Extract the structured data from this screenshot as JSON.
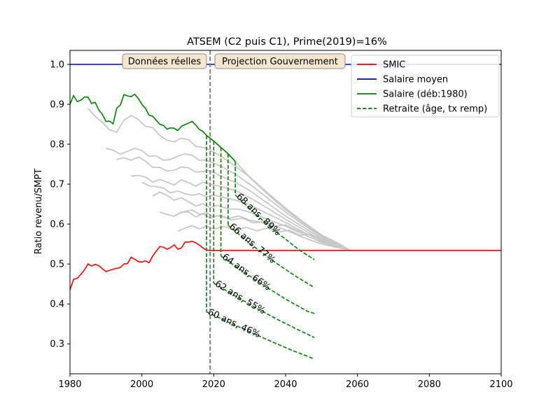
{
  "chart_data": {
    "type": "line",
    "title": "ATSEM (C2 puis C1), Prime(2019)=16%",
    "xlabel": "",
    "ylabel": "Ratio revenu/SMPT",
    "xlim": [
      1980,
      2100
    ],
    "ylim": [
      0.225,
      1.035
    ],
    "xticks": [
      1980,
      2000,
      2020,
      2040,
      2060,
      2080,
      2100
    ],
    "yticks": [
      0.3,
      0.4,
      0.5,
      0.6,
      0.7,
      0.8,
      0.9,
      1.0
    ],
    "grid": false,
    "legend_position": "top-right",
    "vline_year": 2019,
    "period_labels": [
      "Données réelles",
      "Projection Gouvernement"
    ],
    "colors": {
      "smic": "#ff0000",
      "salaire_moyen": "#0000cc",
      "salaire": "#008000",
      "retraite": "#008000",
      "background_curves": "#c8c8c8",
      "vline": "#808080",
      "label_box_fill": "#f5e6cf",
      "label_box_edge": "#8a8a8a"
    },
    "series": [
      {
        "name": "SMIC",
        "style": "solid",
        "color": "#ff0000",
        "x": [
          1980,
          1981,
          1982,
          1983,
          1984,
          1985,
          1986,
          1987,
          1988,
          1989,
          1990,
          1991,
          1992,
          1993,
          1994,
          1995,
          1996,
          1997,
          1998,
          1999,
          2000,
          2001,
          2002,
          2003,
          2004,
          2005,
          2006,
          2007,
          2008,
          2009,
          2010,
          2011,
          2012,
          2013,
          2014,
          2015,
          2016,
          2017,
          2018,
          2019,
          2100
        ],
        "y": [
          0.435,
          0.462,
          0.464,
          0.474,
          0.485,
          0.5,
          0.495,
          0.499,
          0.496,
          0.488,
          0.481,
          0.484,
          0.487,
          0.489,
          0.491,
          0.5,
          0.501,
          0.517,
          0.512,
          0.506,
          0.505,
          0.508,
          0.503,
          0.52,
          0.532,
          0.544,
          0.542,
          0.537,
          0.541,
          0.548,
          0.537,
          0.54,
          0.555,
          0.555,
          0.557,
          0.553,
          0.547,
          0.54,
          0.535,
          0.534,
          0.534
        ]
      },
      {
        "name": "Salaire moyen",
        "style": "solid",
        "color": "#0000cc",
        "x": [
          1980,
          2100
        ],
        "y": [
          1.0,
          1.0
        ]
      },
      {
        "name": "Salaire (déb:1980)",
        "style": "solid",
        "color": "#008000",
        "x": [
          1980,
          1981,
          1982,
          1983,
          1984,
          1985,
          1986,
          1987,
          1988,
          1989,
          1990,
          1991,
          1992,
          1993,
          1994,
          1995,
          1996,
          1997,
          1998,
          1999,
          2000,
          2001,
          2002,
          2003,
          2004,
          2005,
          2006,
          2007,
          2008,
          2009,
          2010,
          2011,
          2012,
          2013,
          2014,
          2015,
          2016,
          2017,
          2018
        ],
        "y": [
          0.9,
          0.922,
          0.907,
          0.91,
          0.918,
          0.918,
          0.902,
          0.905,
          0.886,
          0.875,
          0.857,
          0.858,
          0.851,
          0.89,
          0.898,
          0.924,
          0.921,
          0.919,
          0.925,
          0.915,
          0.9,
          0.89,
          0.873,
          0.87,
          0.86,
          0.85,
          0.847,
          0.838,
          0.841,
          0.84,
          0.834,
          0.845,
          0.849,
          0.853,
          0.857,
          0.848,
          0.837,
          0.832,
          0.822
        ]
      },
      {
        "name": "Retraite (âge, tx remp)",
        "style": "dashed",
        "color": "#008000",
        "x": [
          2018,
          2048
        ],
        "y": [
          0.38,
          0.262
        ]
      }
    ],
    "projection_curve": {
      "x": [
        2018,
        2020,
        2022,
        2024,
        2026,
        2028,
        2030,
        2035,
        2040,
        2045,
        2050,
        2055,
        2058
      ],
      "y": [
        0.822,
        0.808,
        0.792,
        0.776,
        0.757,
        0.737,
        0.717,
        0.675,
        0.636,
        0.602,
        0.571,
        0.549,
        0.534
      ]
    },
    "background_curves": [
      {
        "x": [
          1985,
          1987,
          1989,
          1991,
          1993,
          1995,
          1997,
          1999,
          2001,
          2003,
          2005,
          2007,
          2009,
          2011,
          2013,
          2015,
          2018,
          2022,
          2026,
          2030,
          2035,
          2040,
          2045,
          2050,
          2055,
          2058
        ],
        "y": [
          0.89,
          0.87,
          0.855,
          0.836,
          0.83,
          0.86,
          0.872,
          0.862,
          0.845,
          0.842,
          0.822,
          0.81,
          0.806,
          0.815,
          0.811,
          0.795,
          0.79,
          0.77,
          0.745,
          0.718,
          0.678,
          0.64,
          0.605,
          0.573,
          0.55,
          0.534
        ]
      },
      {
        "x": [
          1990,
          1992,
          1994,
          1996,
          1998,
          2000,
          2002,
          2004,
          2006,
          2008,
          2010,
          2012,
          2014,
          2016,
          2018,
          2022,
          2026,
          2030,
          2035,
          2040,
          2045,
          2050,
          2055,
          2058
        ],
        "y": [
          0.79,
          0.785,
          0.775,
          0.782,
          0.79,
          0.784,
          0.77,
          0.771,
          0.76,
          0.762,
          0.77,
          0.776,
          0.772,
          0.76,
          0.76,
          0.745,
          0.725,
          0.7,
          0.665,
          0.63,
          0.598,
          0.568,
          0.548,
          0.534
        ]
      },
      {
        "x": [
          1993,
          1995,
          1997,
          1999,
          2001,
          2003,
          2005,
          2007,
          2009,
          2011,
          2013,
          2015,
          2017,
          2019,
          2022,
          2026,
          2030,
          2035,
          2040,
          2045,
          2050,
          2055,
          2058
        ],
        "y": [
          0.762,
          0.766,
          0.76,
          0.768,
          0.758,
          0.742,
          0.742,
          0.733,
          0.735,
          0.743,
          0.741,
          0.73,
          0.732,
          0.734,
          0.72,
          0.705,
          0.684,
          0.652,
          0.62,
          0.592,
          0.564,
          0.546,
          0.534
        ]
      },
      {
        "x": [
          1997,
          1999,
          2001,
          2003,
          2005,
          2007,
          2009,
          2011,
          2013,
          2015,
          2017,
          2019,
          2022,
          2026,
          2030,
          2035,
          2040,
          2045,
          2050,
          2055,
          2058
        ],
        "y": [
          0.72,
          0.722,
          0.718,
          0.705,
          0.712,
          0.705,
          0.698,
          0.711,
          0.704,
          0.695,
          0.705,
          0.7,
          0.694,
          0.684,
          0.666,
          0.64,
          0.612,
          0.586,
          0.56,
          0.545,
          0.534
        ]
      },
      {
        "x": [
          2000,
          2002,
          2004,
          2006,
          2008,
          2010,
          2012,
          2014,
          2016,
          2018,
          2020,
          2022,
          2026,
          2030,
          2035,
          2040,
          2045,
          2050,
          2055,
          2058
        ],
        "y": [
          0.705,
          0.696,
          0.694,
          0.69,
          0.678,
          0.683,
          0.676,
          0.672,
          0.676,
          0.668,
          0.673,
          0.668,
          0.66,
          0.648,
          0.626,
          0.604,
          0.58,
          0.557,
          0.544,
          0.534
        ]
      },
      {
        "x": [
          2003,
          2005,
          2007,
          2009,
          2011,
          2013,
          2015,
          2017,
          2019,
          2021,
          2024,
          2027,
          2030,
          2035,
          2040,
          2045,
          2050,
          2055,
          2058
        ],
        "y": [
          0.67,
          0.68,
          0.672,
          0.66,
          0.666,
          0.656,
          0.645,
          0.651,
          0.641,
          0.647,
          0.638,
          0.637,
          0.63,
          0.612,
          0.595,
          0.574,
          0.554,
          0.542,
          0.534
        ]
      },
      {
        "x": [
          2005,
          2007,
          2009,
          2011,
          2013,
          2015,
          2017,
          2019,
          2021,
          2024,
          2027,
          2030,
          2033,
          2036,
          2040,
          2045,
          2050,
          2055,
          2058
        ],
        "y": [
          0.63,
          0.624,
          0.62,
          0.63,
          0.63,
          0.618,
          0.626,
          0.615,
          0.621,
          0.614,
          0.62,
          0.61,
          0.605,
          0.6,
          0.585,
          0.566,
          0.55,
          0.54,
          0.534
        ]
      },
      {
        "x": [
          2010,
          2012,
          2014,
          2016,
          2018,
          2020,
          2022,
          2025,
          2028,
          2031,
          2034,
          2037,
          2040,
          2043,
          2046,
          2050,
          2054,
          2058
        ],
        "y": [
          0.625,
          0.632,
          0.635,
          0.625,
          0.628,
          0.618,
          0.622,
          0.61,
          0.615,
          0.603,
          0.606,
          0.595,
          0.598,
          0.585,
          0.575,
          0.565,
          0.548,
          0.534
        ]
      },
      {
        "x": [
          2010,
          2012,
          2014,
          2016,
          2018,
          2020,
          2023,
          2026,
          2029,
          2032,
          2035,
          2038,
          2041,
          2044,
          2047,
          2050,
          2054,
          2058
        ],
        "y": [
          0.582,
          0.59,
          0.596,
          0.588,
          0.595,
          0.588,
          0.594,
          0.585,
          0.592,
          0.583,
          0.59,
          0.58,
          0.585,
          0.572,
          0.574,
          0.562,
          0.55,
          0.534
        ]
      }
    ],
    "retirements": [
      {
        "age_label": "60 ans, 46%",
        "start_year": 2018,
        "from": 0.822,
        "to": 0.38,
        "x": [
          2018,
          2024,
          2030,
          2036,
          2042,
          2048
        ],
        "y": [
          0.38,
          0.355,
          0.33,
          0.306,
          0.283,
          0.262
        ]
      },
      {
        "age_label": "62 ans, 55%",
        "start_year": 2020,
        "from": 0.808,
        "to": 0.452,
        "x": [
          2020,
          2026,
          2032,
          2038,
          2044,
          2048
        ],
        "y": [
          0.452,
          0.42,
          0.389,
          0.36,
          0.333,
          0.316
        ]
      },
      {
        "age_label": "64 ans, 66%",
        "start_year": 2022,
        "from": 0.792,
        "to": 0.52,
        "x": [
          2022,
          2028,
          2034,
          2040,
          2046,
          2048
        ],
        "y": [
          0.52,
          0.482,
          0.446,
          0.412,
          0.382,
          0.376
        ]
      },
      {
        "age_label": "66 ans, 77%",
        "start_year": 2024,
        "from": 0.776,
        "to": 0.597,
        "x": [
          2024,
          2030,
          2036,
          2042,
          2048
        ],
        "y": [
          0.597,
          0.552,
          0.511,
          0.474,
          0.441
        ]
      },
      {
        "age_label": "68 ans, 89%",
        "start_year": 2026,
        "from": 0.757,
        "to": 0.673,
        "x": [
          2026,
          2032,
          2038,
          2044,
          2048
        ],
        "y": [
          0.673,
          0.622,
          0.576,
          0.534,
          0.511
        ]
      }
    ]
  }
}
